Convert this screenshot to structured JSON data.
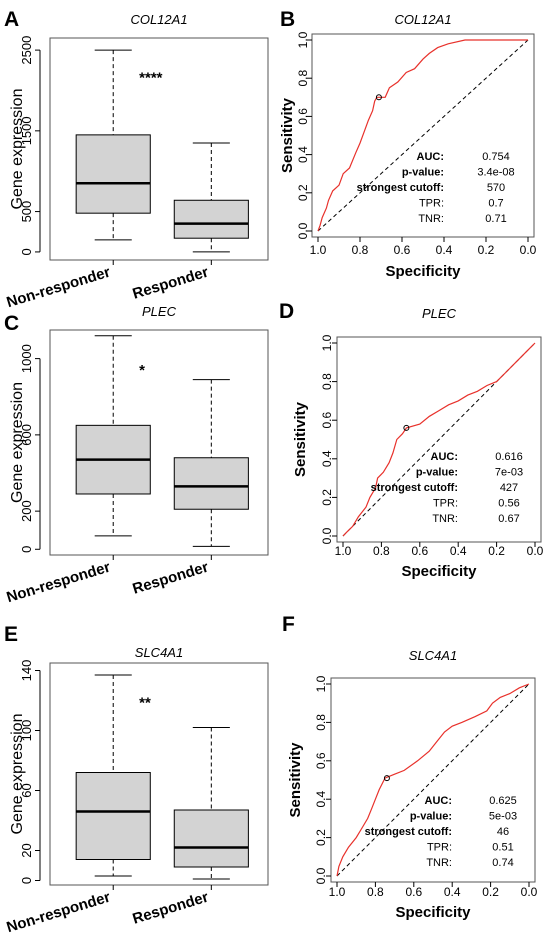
{
  "chart_data": [
    {
      "panel": "A",
      "type": "box",
      "title": "COL12A1",
      "ylabel": "Gene expression",
      "categories": [
        "Non-responder",
        "Responder"
      ],
      "ylim": [
        -100,
        2650
      ],
      "yticks": [
        "0",
        "500",
        "1500",
        "2500"
      ],
      "ytick_values": [
        0,
        500,
        1500,
        2500
      ],
      "boxes": [
        {
          "name": "Non-responder",
          "whisker_low": 150,
          "q1": 480,
          "median": 850,
          "q3": 1450,
          "whisker_high": 2500
        },
        {
          "name": "Responder",
          "whisker_low": 0,
          "q1": 170,
          "median": 350,
          "q3": 640,
          "whisker_high": 1350
        }
      ],
      "significance": "****"
    },
    {
      "panel": "B",
      "type": "line",
      "title": "COL12A1",
      "xlabel": "Specificity",
      "ylabel": "Sensitivity",
      "xticks": [
        "1.0",
        "0.8",
        "0.6",
        "0.4",
        "0.2",
        "0.0"
      ],
      "yticks": [
        "0.0",
        "0.2",
        "0.4",
        "0.6",
        "0.8",
        "1.0"
      ],
      "roc": [
        [
          1,
          0
        ],
        [
          0.99,
          0.03
        ],
        [
          0.98,
          0.07
        ],
        [
          0.96,
          0.12
        ],
        [
          0.95,
          0.16
        ],
        [
          0.93,
          0.21
        ],
        [
          0.9,
          0.24
        ],
        [
          0.88,
          0.3
        ],
        [
          0.85,
          0.33
        ],
        [
          0.82,
          0.41
        ],
        [
          0.8,
          0.46
        ],
        [
          0.78,
          0.52
        ],
        [
          0.76,
          0.58
        ],
        [
          0.74,
          0.63
        ],
        [
          0.73,
          0.68
        ],
        [
          0.72,
          0.7
        ],
        [
          0.68,
          0.7
        ],
        [
          0.66,
          0.75
        ],
        [
          0.62,
          0.78
        ],
        [
          0.58,
          0.83
        ],
        [
          0.54,
          0.85
        ],
        [
          0.5,
          0.9
        ],
        [
          0.47,
          0.93
        ],
        [
          0.43,
          0.96
        ],
        [
          0.38,
          0.98
        ],
        [
          0.3,
          1
        ],
        [
          0.2,
          1
        ],
        [
          0,
          1
        ]
      ],
      "cutoff_point": [
        0.71,
        0.7
      ],
      "stats": [
        {
          "label": "AUC:",
          "value": "0.754"
        },
        {
          "label": "p-value:",
          "value": "3.4e-08"
        },
        {
          "label": "strongest cutoff:",
          "value": "570"
        },
        {
          "label": "TPR:",
          "value": "0.7"
        },
        {
          "label": "TNR:",
          "value": "0.71"
        }
      ]
    },
    {
      "panel": "C",
      "type": "box",
      "title": "PLEC",
      "ylabel": "Gene expression",
      "categories": [
        "Non-responder",
        "Responder"
      ],
      "ylim": [
        -30,
        1150
      ],
      "yticks": [
        "0",
        "200",
        "600",
        "1000"
      ],
      "ytick_values": [
        0,
        200,
        600,
        1000
      ],
      "boxes": [
        {
          "name": "Non-responder",
          "whisker_low": 70,
          "q1": 290,
          "median": 470,
          "q3": 650,
          "whisker_high": 1120
        },
        {
          "name": "Responder",
          "whisker_low": 15,
          "q1": 210,
          "median": 330,
          "q3": 480,
          "whisker_high": 890
        }
      ],
      "significance": "*"
    },
    {
      "panel": "D",
      "type": "line",
      "title": "PLEC",
      "xlabel": "Specificity",
      "ylabel": "Sensitivity",
      "xticks": [
        "1.0",
        "0.8",
        "0.6",
        "0.4",
        "0.2",
        "0.0"
      ],
      "yticks": [
        "0.0",
        "0.2",
        "0.4",
        "0.6",
        "0.8",
        "1.0"
      ],
      "roc": [
        [
          1,
          0
        ],
        [
          0.98,
          0.02
        ],
        [
          0.95,
          0.05
        ],
        [
          0.92,
          0.1
        ],
        [
          0.88,
          0.15
        ],
        [
          0.86,
          0.2
        ],
        [
          0.83,
          0.25
        ],
        [
          0.82,
          0.3
        ],
        [
          0.79,
          0.33
        ],
        [
          0.76,
          0.38
        ],
        [
          0.74,
          0.43
        ],
        [
          0.72,
          0.5
        ],
        [
          0.69,
          0.53
        ],
        [
          0.67,
          0.56
        ],
        [
          0.6,
          0.58
        ],
        [
          0.55,
          0.62
        ],
        [
          0.5,
          0.65
        ],
        [
          0.45,
          0.68
        ],
        [
          0.4,
          0.7
        ],
        [
          0.35,
          0.73
        ],
        [
          0.3,
          0.75
        ],
        [
          0.25,
          0.78
        ],
        [
          0.2,
          0.8
        ],
        [
          0.15,
          0.85
        ],
        [
          0.1,
          0.9
        ],
        [
          0.06,
          0.94
        ],
        [
          0.03,
          0.97
        ],
        [
          0,
          1
        ]
      ],
      "cutoff_point": [
        0.67,
        0.56
      ],
      "stats": [
        {
          "label": "AUC:",
          "value": "0.616"
        },
        {
          "label": "p-value:",
          "value": "7e-03"
        },
        {
          "label": "strongest cutoff:",
          "value": "427"
        },
        {
          "label": "TPR:",
          "value": "0.56"
        },
        {
          "label": "TNR:",
          "value": "0.67"
        }
      ]
    },
    {
      "panel": "E",
      "type": "box",
      "title": "SLC4A1",
      "ylabel": "Gene expression",
      "categories": [
        "Non-responder",
        "Responder"
      ],
      "ylim": [
        -3,
        145
      ],
      "yticks": [
        "0",
        "20",
        "60",
        "100",
        "140"
      ],
      "ytick_values": [
        0,
        20,
        60,
        100,
        140
      ],
      "boxes": [
        {
          "name": "Non-responder",
          "whisker_low": 3,
          "q1": 14,
          "median": 46,
          "q3": 72,
          "whisker_high": 137
        },
        {
          "name": "Responder",
          "whisker_low": 1,
          "q1": 9,
          "median": 22,
          "q3": 47,
          "whisker_high": 102
        }
      ],
      "significance": "**"
    },
    {
      "panel": "F",
      "type": "line",
      "title": "SLC4A1",
      "xlabel": "Specificity",
      "ylabel": "Sensitivity",
      "xticks": [
        "1.0",
        "0.8",
        "0.6",
        "0.4",
        "0.2",
        "0.0"
      ],
      "yticks": [
        "0.0",
        "0.2",
        "0.4",
        "0.6",
        "0.8",
        "1.0"
      ],
      "roc": [
        [
          1,
          0
        ],
        [
          0.99,
          0.05
        ],
        [
          0.97,
          0.1
        ],
        [
          0.94,
          0.15
        ],
        [
          0.9,
          0.2
        ],
        [
          0.87,
          0.25
        ],
        [
          0.84,
          0.3
        ],
        [
          0.82,
          0.35
        ],
        [
          0.8,
          0.4
        ],
        [
          0.78,
          0.45
        ],
        [
          0.75,
          0.51
        ],
        [
          0.7,
          0.53
        ],
        [
          0.65,
          0.55
        ],
        [
          0.58,
          0.6
        ],
        [
          0.52,
          0.65
        ],
        [
          0.48,
          0.7
        ],
        [
          0.44,
          0.75
        ],
        [
          0.4,
          0.78
        ],
        [
          0.35,
          0.8
        ],
        [
          0.28,
          0.83
        ],
        [
          0.22,
          0.86
        ],
        [
          0.19,
          0.9
        ],
        [
          0.15,
          0.93
        ],
        [
          0.1,
          0.95
        ],
        [
          0.05,
          0.98
        ],
        [
          0,
          1
        ]
      ],
      "cutoff_point": [
        0.74,
        0.51
      ],
      "stats": [
        {
          "label": "AUC:",
          "value": "0.625"
        },
        {
          "label": "p-value:",
          "value": "5e-03"
        },
        {
          "label": "strongest cutoff:",
          "value": "46"
        },
        {
          "label": "TPR:",
          "value": "0.51"
        },
        {
          "label": "TNR:",
          "value": "0.74"
        }
      ]
    }
  ],
  "colors": {
    "box_fill": "#d3d3d3",
    "roc_line": "#e8312b",
    "axis": "#000000",
    "frame": "#555555"
  }
}
